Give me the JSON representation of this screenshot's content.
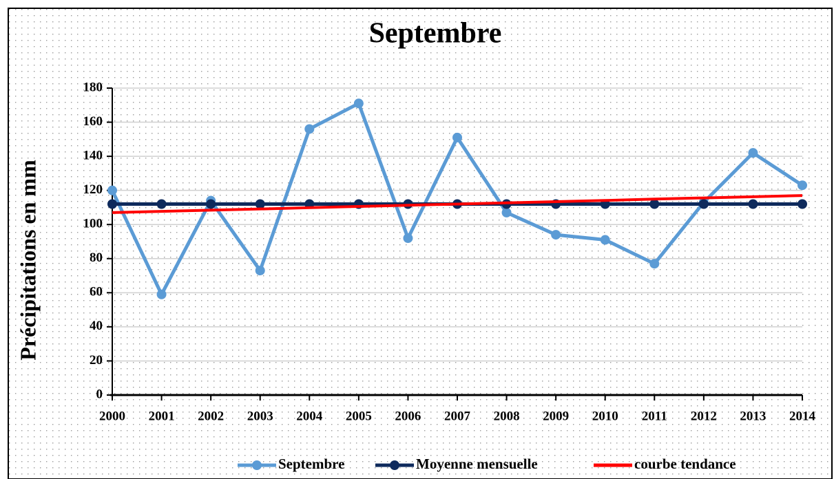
{
  "chart_data": {
    "type": "line",
    "title": "Septembre",
    "y_label": "Précipitations en mm",
    "categories": [
      "2000",
      "2001",
      "2002",
      "2003",
      "2004",
      "2005",
      "2006",
      "2007",
      "2008",
      "2009",
      "2010",
      "2011",
      "2012",
      "2013",
      "2014"
    ],
    "series": [
      {
        "name": "Septembre",
        "color": "#5b9bd5",
        "marker": true,
        "values": [
          120,
          59,
          114,
          73,
          156,
          171,
          92,
          151,
          107,
          94,
          91,
          77,
          113,
          142,
          123
        ]
      },
      {
        "name": "Moyenne mensuelle",
        "color": "#0e2a5c",
        "marker": true,
        "values": [
          112,
          112,
          112,
          112,
          112,
          112,
          112,
          112,
          112,
          112,
          112,
          112,
          112,
          112,
          112
        ]
      },
      {
        "name": "courbe tendance",
        "color": "#ff0000",
        "marker": false,
        "values": [
          107,
          107.7,
          108.4,
          109.1,
          109.9,
          110.6,
          111.3,
          112,
          112.7,
          113.4,
          114.1,
          114.9,
          115.6,
          116.3,
          117
        ]
      }
    ],
    "ylim": [
      0,
      180
    ],
    "yticks": [
      0,
      20,
      40,
      60,
      80,
      100,
      120,
      140,
      160,
      180
    ],
    "grid": true,
    "legend": "bottom"
  }
}
